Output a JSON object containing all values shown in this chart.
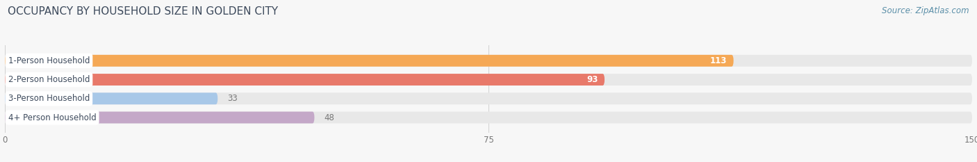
{
  "title": "OCCUPANCY BY HOUSEHOLD SIZE IN GOLDEN CITY",
  "source": "Source: ZipAtlas.com",
  "categories": [
    "1-Person Household",
    "2-Person Household",
    "3-Person Household",
    "4+ Person Household"
  ],
  "values": [
    113,
    93,
    33,
    48
  ],
  "bar_colors": [
    "#F5A855",
    "#E8796A",
    "#A8C8E8",
    "#C4A8C8"
  ],
  "xlim": [
    0,
    150
  ],
  "xticks": [
    0,
    75,
    150
  ],
  "background_color": "#F7F7F7",
  "bar_bg_color": "#E8E8E8",
  "title_color": "#3D4A5C",
  "source_color": "#5B8FA8",
  "label_color": "#3D4A5C",
  "value_color_inside": "#FFFFFF",
  "value_color_outside": "#777777",
  "title_fontsize": 11,
  "source_fontsize": 8.5,
  "label_fontsize": 8.5,
  "value_fontsize": 8.5,
  "tick_fontsize": 8.5,
  "bar_height": 0.62,
  "bar_gap": 0.18,
  "inside_value_threshold": 60
}
